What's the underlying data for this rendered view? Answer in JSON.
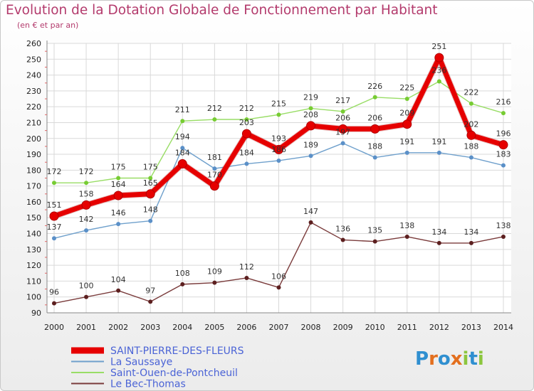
{
  "chart_data": {
    "type": "line",
    "title": "Evolution de la Dotation Globale de Fonctionnement par Habitant",
    "subtitle": "(en € et par an)",
    "xlabel": "",
    "ylabel": "",
    "ylim": [
      90,
      260
    ],
    "ytick_step": 10,
    "grid": true,
    "legend_position": "bottom-left",
    "categories": [
      "2000",
      "2001",
      "2002",
      "2003",
      "2004",
      "2005",
      "2006",
      "2007",
      "2008",
      "2009",
      "2010",
      "2011",
      "2012",
      "2013",
      "2014"
    ],
    "series": [
      {
        "name": "SAINT-PIERRE-DES-FLEURS",
        "color": "#e60000",
        "pointColor": "#e60000",
        "values": [
          151,
          158,
          164,
          165,
          184,
          170,
          203,
          193,
          208,
          206,
          206,
          209,
          251,
          202,
          196
        ]
      },
      {
        "name": "La Saussaye",
        "color": "#6fa0cc",
        "pointColor": "#5b90c8",
        "values": [
          137,
          142,
          146,
          148,
          194,
          181,
          184,
          186,
          189,
          197,
          188,
          191,
          191,
          188,
          183
        ]
      },
      {
        "name": "Saint-Ouen-de-Pontcheuil",
        "color": "#99dd66",
        "pointColor": "#77cc33",
        "values": [
          172,
          172,
          175,
          175,
          211,
          212,
          212,
          215,
          219,
          217,
          226,
          225,
          236,
          222,
          216
        ]
      },
      {
        "name": "Le Bec-Thomas",
        "color": "#7a3b3b",
        "pointColor": "#5c1f1f",
        "values": [
          96,
          100,
          104,
          97,
          108,
          109,
          112,
          106,
          147,
          136,
          135,
          138,
          134,
          134,
          138
        ]
      }
    ]
  },
  "logo": {
    "letters": [
      "P",
      "r",
      "o",
      "x",
      "i",
      "t",
      "i"
    ],
    "colors": [
      "#2f8fd0",
      "#e36f1e",
      "#2f8fd0",
      "#e36f1e",
      "#8cc63e",
      "#2f8fd0",
      "#8cc63e"
    ]
  }
}
